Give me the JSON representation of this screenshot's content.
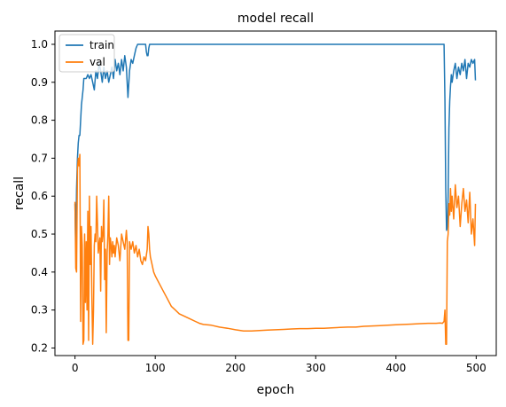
{
  "chart_data": {
    "type": "line",
    "title": "model recall",
    "xlabel": "epoch",
    "ylabel": "recall",
    "xlim": [
      -25,
      525
    ],
    "ylim": [
      0.18,
      1.035
    ],
    "xticks": [
      0,
      100,
      200,
      300,
      400,
      500
    ],
    "yticks": [
      0.2,
      0.3,
      0.4,
      0.5,
      0.6,
      0.7,
      0.8,
      0.9,
      1.0
    ],
    "xtick_labels": [
      "0",
      "100",
      "200",
      "300",
      "400",
      "500"
    ],
    "ytick_labels": [
      "0.2",
      "0.3",
      "0.4",
      "0.5",
      "0.6",
      "0.7",
      "0.8",
      "0.9",
      "1.0"
    ],
    "grid": false,
    "legend_position": "top-left",
    "series": [
      {
        "name": "train",
        "color": "#1f77b4",
        "x": [
          0,
          1,
          2,
          3,
          4,
          5,
          6,
          7,
          8,
          9,
          10,
          11,
          12,
          14,
          16,
          18,
          20,
          22,
          24,
          26,
          28,
          30,
          32,
          34,
          36,
          38,
          40,
          42,
          44,
          46,
          48,
          50,
          52,
          54,
          56,
          58,
          60,
          62,
          64,
          66,
          68,
          70,
          72,
          74,
          76,
          78,
          80,
          82,
          84,
          86,
          88,
          89,
          90,
          91,
          92,
          93,
          94,
          95,
          96,
          100,
          150,
          200,
          250,
          300,
          350,
          400,
          450,
          460,
          461,
          462,
          463,
          464,
          465,
          466,
          467,
          468,
          469,
          470,
          472,
          474,
          476,
          478,
          480,
          482,
          484,
          486,
          488,
          490,
          492,
          494,
          496,
          498,
          499
        ],
        "y": [
          0.58,
          0.46,
          0.62,
          0.7,
          0.74,
          0.76,
          0.76,
          0.8,
          0.84,
          0.86,
          0.88,
          0.91,
          0.91,
          0.91,
          0.92,
          0.91,
          0.92,
          0.9,
          0.88,
          0.93,
          0.91,
          0.95,
          0.93,
          0.9,
          0.94,
          0.91,
          0.93,
          0.9,
          0.92,
          0.94,
          0.91,
          0.96,
          0.93,
          0.95,
          0.92,
          0.96,
          0.93,
          0.97,
          0.94,
          0.86,
          0.93,
          0.96,
          0.95,
          0.97,
          0.99,
          1.0,
          1.0,
          1.0,
          1.0,
          1.0,
          1.0,
          0.98,
          0.97,
          0.97,
          0.99,
          1.0,
          1.0,
          1.0,
          1.0,
          1.0,
          1.0,
          1.0,
          1.0,
          1.0,
          1.0,
          1.0,
          1.0,
          1.0,
          0.85,
          0.62,
          0.51,
          0.52,
          0.6,
          0.78,
          0.85,
          0.89,
          0.92,
          0.9,
          0.93,
          0.95,
          0.91,
          0.94,
          0.92,
          0.95,
          0.93,
          0.96,
          0.91,
          0.95,
          0.94,
          0.96,
          0.95,
          0.96,
          0.905
        ]
      },
      {
        "name": "val",
        "color": "#ff7f0e",
        "x": [
          0,
          1,
          2,
          3,
          4,
          5,
          6,
          7,
          8,
          9,
          10,
          11,
          12,
          13,
          14,
          15,
          16,
          17,
          18,
          19,
          20,
          21,
          22,
          23,
          24,
          25,
          26,
          27,
          28,
          29,
          30,
          31,
          32,
          33,
          34,
          35,
          36,
          37,
          38,
          39,
          40,
          41,
          42,
          43,
          44,
          45,
          46,
          47,
          48,
          49,
          50,
          52,
          54,
          56,
          58,
          60,
          62,
          64,
          65,
          66,
          67,
          68,
          70,
          72,
          74,
          76,
          78,
          80,
          82,
          84,
          86,
          88,
          90,
          91,
          92,
          93,
          94,
          96,
          98,
          100,
          105,
          110,
          115,
          120,
          125,
          130,
          135,
          140,
          145,
          150,
          155,
          160,
          170,
          180,
          190,
          200,
          210,
          220,
          230,
          240,
          250,
          260,
          270,
          280,
          290,
          300,
          310,
          320,
          330,
          340,
          350,
          360,
          370,
          380,
          390,
          400,
          410,
          420,
          430,
          440,
          450,
          455,
          458,
          460,
          461,
          462,
          463,
          464,
          465,
          466,
          467,
          468,
          469,
          470,
          472,
          474,
          476,
          478,
          480,
          482,
          484,
          486,
          488,
          490,
          492,
          494,
          496,
          498,
          499
        ],
        "y": [
          0.585,
          0.41,
          0.4,
          0.67,
          0.7,
          0.68,
          0.71,
          0.27,
          0.52,
          0.47,
          0.21,
          0.22,
          0.5,
          0.32,
          0.48,
          0.3,
          0.56,
          0.22,
          0.6,
          0.42,
          0.52,
          0.33,
          0.21,
          0.3,
          0.47,
          0.5,
          0.48,
          0.6,
          0.53,
          0.45,
          0.47,
          0.49,
          0.35,
          0.52,
          0.48,
          0.5,
          0.59,
          0.38,
          0.46,
          0.24,
          0.45,
          0.5,
          0.6,
          0.42,
          0.49,
          0.47,
          0.44,
          0.48,
          0.45,
          0.47,
          0.44,
          0.49,
          0.47,
          0.43,
          0.5,
          0.48,
          0.46,
          0.51,
          0.48,
          0.22,
          0.22,
          0.48,
          0.46,
          0.48,
          0.45,
          0.47,
          0.44,
          0.46,
          0.43,
          0.42,
          0.44,
          0.43,
          0.46,
          0.52,
          0.5,
          0.46,
          0.44,
          0.42,
          0.4,
          0.39,
          0.37,
          0.35,
          0.33,
          0.31,
          0.3,
          0.29,
          0.285,
          0.28,
          0.275,
          0.27,
          0.265,
          0.262,
          0.26,
          0.255,
          0.252,
          0.248,
          0.245,
          0.245,
          0.246,
          0.247,
          0.248,
          0.249,
          0.25,
          0.251,
          0.251,
          0.252,
          0.252,
          0.253,
          0.254,
          0.255,
          0.255,
          0.257,
          0.258,
          0.259,
          0.26,
          0.261,
          0.262,
          0.263,
          0.264,
          0.265,
          0.265,
          0.266,
          0.265,
          0.27,
          0.3,
          0.21,
          0.21,
          0.48,
          0.5,
          0.58,
          0.55,
          0.62,
          0.56,
          0.6,
          0.54,
          0.63,
          0.57,
          0.6,
          0.52,
          0.58,
          0.62,
          0.56,
          0.59,
          0.53,
          0.61,
          0.5,
          0.54,
          0.47,
          0.58
        ]
      }
    ]
  }
}
